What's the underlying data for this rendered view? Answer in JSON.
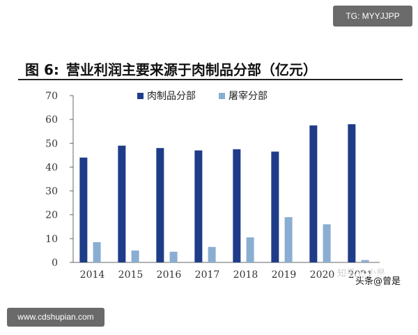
{
  "watermark_top": "TG: MYYJJPP",
  "figure": {
    "number": "图 6:",
    "title": "营业利润主要来源于肉制品分部（亿元）"
  },
  "watermark_site": "www.cdshupian.com",
  "watermark_zhihu": "知乎 @小是",
  "watermark_author": "头条@曾是",
  "colors": {
    "meat": "#1f3c88",
    "slaughter": "#8aaed1",
    "axis": "#666666"
  },
  "chart_data": {
    "type": "bar",
    "title": "营业利润主要来源于肉制品分部（亿元）",
    "xlabel": "",
    "ylabel": "",
    "categories": [
      "2014",
      "2015",
      "2016",
      "2017",
      "2018",
      "2019",
      "2020",
      "2021"
    ],
    "series": [
      {
        "name": "肉制品分部",
        "values": [
          44,
          49,
          48,
          47,
          47.5,
          46.5,
          57.5,
          58
        ]
      },
      {
        "name": "屠宰分部",
        "values": [
          8.5,
          5,
          4.5,
          6.5,
          10.5,
          19,
          16,
          1
        ]
      }
    ],
    "ylim": [
      0,
      70
    ],
    "yticks": [
      0,
      10,
      20,
      30,
      40,
      50,
      60,
      70
    ],
    "legend_position": "top",
    "grid": false
  }
}
